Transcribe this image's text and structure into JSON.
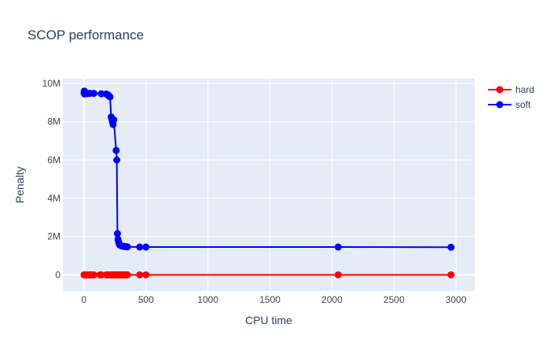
{
  "chart_data": {
    "type": "line",
    "title": "SCOP performance",
    "xlabel": "CPU time",
    "ylabel": "Penalty",
    "xlim": [
      -170,
      3150
    ],
    "ylim": [
      -850000,
      10250000
    ],
    "x_ticks": [
      0,
      500,
      1000,
      1500,
      2000,
      2500,
      3000
    ],
    "x_tick_labels": [
      "0",
      "500",
      "1000",
      "1500",
      "2000",
      "2500",
      "3000"
    ],
    "y_ticks": [
      0,
      2000000,
      4000000,
      6000000,
      8000000,
      10000000
    ],
    "y_tick_labels": [
      "0",
      "2M",
      "4M",
      "6M",
      "8M",
      "10M"
    ],
    "grid": true,
    "legend_position": "top-right",
    "series": [
      {
        "name": "hard",
        "color": "#ff0000",
        "x": [
          1,
          3,
          5,
          8,
          10,
          15,
          20,
          25,
          30,
          40,
          50,
          60,
          80,
          130,
          140,
          180,
          190,
          200,
          210,
          220,
          230,
          240,
          250,
          260,
          265,
          270,
          275,
          280,
          285,
          290,
          300,
          310,
          320,
          330,
          340,
          350,
          450,
          500,
          2050,
          2960
        ],
        "y": [
          0,
          0,
          0,
          0,
          0,
          0,
          0,
          0,
          0,
          0,
          0,
          0,
          0,
          0,
          0,
          0,
          0,
          0,
          0,
          0,
          0,
          0,
          0,
          0,
          0,
          0,
          0,
          0,
          0,
          0,
          0,
          0,
          0,
          0,
          0,
          0,
          0,
          0,
          0,
          0
        ]
      },
      {
        "name": "soft",
        "color": "#0000ff",
        "x": [
          1,
          3,
          5,
          8,
          10,
          15,
          20,
          30,
          50,
          80,
          140,
          180,
          195,
          200,
          210,
          220,
          225,
          230,
          235,
          240,
          260,
          265,
          270,
          275,
          280,
          285,
          290,
          300,
          310,
          320,
          330,
          340,
          350,
          450,
          500,
          2050,
          2960
        ],
        "y": [
          9500000,
          9600000,
          9450000,
          9550000,
          9500000,
          9480000,
          9500000,
          9470000,
          9480000,
          9480000,
          9460000,
          9450000,
          9400000,
          9350000,
          9300000,
          8250000,
          8150000,
          8000000,
          7850000,
          8100000,
          6500000,
          6000000,
          2150000,
          1850000,
          1700000,
          1600000,
          1550000,
          1520000,
          1500000,
          1490000,
          1480000,
          1470000,
          1460000,
          1450000,
          1450000,
          1450000,
          1440000
        ]
      }
    ]
  }
}
